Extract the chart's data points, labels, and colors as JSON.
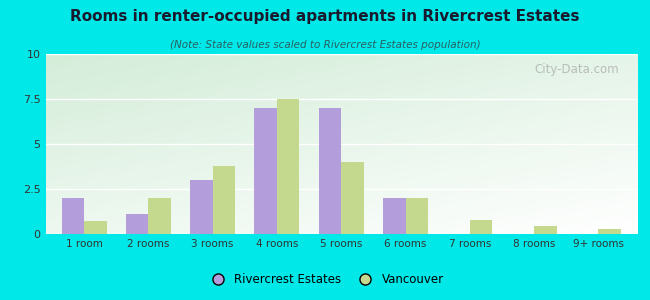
{
  "title": "Rooms in renter-occupied apartments in Rivercrest Estates",
  "subtitle": "(Note: State values scaled to Rivercrest Estates population)",
  "categories": [
    "1 room",
    "2 rooms",
    "3 rooms",
    "4 rooms",
    "5 rooms",
    "6 rooms",
    "7 rooms",
    "8 rooms",
    "9+ rooms"
  ],
  "rivercrest_values": [
    2.0,
    1.1,
    3.0,
    7.0,
    7.0,
    2.0,
    0.0,
    0.0,
    0.0
  ],
  "vancouver_values": [
    0.75,
    2.0,
    3.8,
    7.5,
    4.0,
    2.0,
    0.8,
    0.45,
    0.3
  ],
  "rivercrest_color": "#b39ddb",
  "vancouver_color": "#c5d98e",
  "bg_outer": "#00e8e8",
  "ylim": [
    0,
    10
  ],
  "yticks": [
    0,
    2.5,
    5,
    7.5,
    10
  ],
  "bar_width": 0.35,
  "legend_labels": [
    "Rivercrest Estates",
    "Vancouver"
  ],
  "watermark": "City-Data.com"
}
